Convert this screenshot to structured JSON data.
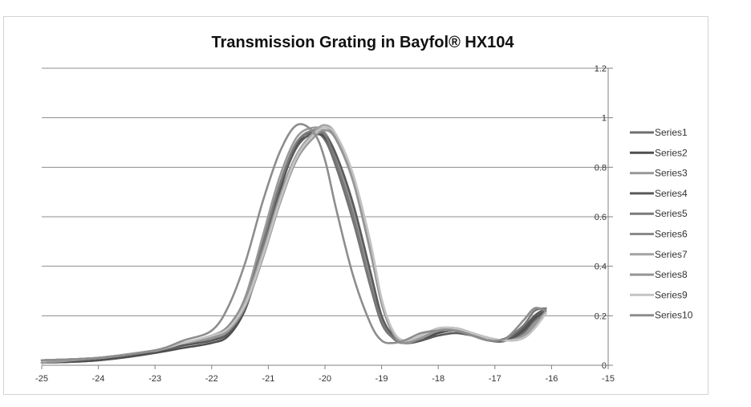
{
  "chart_data": {
    "type": "line",
    "title": "Transmission Grating in Bayfol® HX104",
    "xlabel": "",
    "ylabel": "",
    "xlim": [
      -25,
      -15
    ],
    "ylim": [
      0,
      1.2
    ],
    "x_ticks": [
      "-25",
      "-24",
      "-23",
      "-22",
      "-21",
      "-20",
      "-19",
      "-18",
      "-17",
      "-16",
      "-15"
    ],
    "y_ticks": [
      "0",
      "0.2",
      "0.4",
      "0.6",
      "0.8",
      "1",
      "1.2"
    ],
    "grid": "horizontal",
    "legend_position": "right",
    "series": [
      {
        "name": "Series1",
        "color": "#6f6f6f",
        "x": [
          -25,
          -24,
          -23,
          -22.5,
          -22,
          -21.7,
          -21.4,
          -21.1,
          -20.8,
          -20.5,
          -20.2,
          -20.0,
          -19.8,
          -19.5,
          -19.2,
          -19.0,
          -18.8,
          -18.6,
          -18.3,
          -18.0,
          -17.7,
          -17.4,
          -17.1,
          -16.8,
          -16.5,
          -16.3,
          -16.1
        ],
        "y": [
          0.01,
          0.02,
          0.05,
          0.08,
          0.1,
          0.14,
          0.26,
          0.48,
          0.72,
          0.9,
          0.94,
          0.91,
          0.8,
          0.58,
          0.32,
          0.17,
          0.11,
          0.09,
          0.11,
          0.13,
          0.14,
          0.12,
          0.1,
          0.1,
          0.13,
          0.18,
          0.22
        ]
      },
      {
        "name": "Series2",
        "color": "#4f4f4f",
        "x": [
          -25,
          -24,
          -23,
          -22.5,
          -22,
          -21.7,
          -21.4,
          -21.1,
          -20.8,
          -20.5,
          -20.2,
          -20.0,
          -19.8,
          -19.5,
          -19.2,
          -19.0,
          -18.8,
          -18.6,
          -18.3,
          -18.0,
          -17.7,
          -17.4,
          -17.1,
          -16.8,
          -16.5,
          -16.3,
          -16.1
        ],
        "y": [
          0.01,
          0.02,
          0.05,
          0.07,
          0.09,
          0.12,
          0.23,
          0.45,
          0.7,
          0.89,
          0.93,
          0.92,
          0.83,
          0.62,
          0.35,
          0.19,
          0.12,
          0.09,
          0.1,
          0.13,
          0.14,
          0.12,
          0.1,
          0.1,
          0.14,
          0.19,
          0.22
        ]
      },
      {
        "name": "Series3",
        "color": "#9a9a9a",
        "x": [
          -25,
          -24,
          -23,
          -22.5,
          -22,
          -21.7,
          -21.4,
          -21.1,
          -20.8,
          -20.5,
          -20.2,
          -20.0,
          -19.8,
          -19.5,
          -19.2,
          -19.0,
          -18.8,
          -18.6,
          -18.3,
          -18.0,
          -17.7,
          -17.4,
          -17.1,
          -16.8,
          -16.5,
          -16.3,
          -16.1
        ],
        "y": [
          0.01,
          0.03,
          0.06,
          0.08,
          0.11,
          0.15,
          0.28,
          0.52,
          0.76,
          0.92,
          0.96,
          0.94,
          0.84,
          0.63,
          0.36,
          0.19,
          0.11,
          0.09,
          0.12,
          0.14,
          0.15,
          0.13,
          0.11,
          0.1,
          0.12,
          0.17,
          0.21
        ]
      },
      {
        "name": "Series4",
        "color": "#5a5a5a",
        "x": [
          -25,
          -24,
          -23,
          -22.5,
          -22,
          -21.7,
          -21.4,
          -21.1,
          -20.8,
          -20.5,
          -20.2,
          -20.0,
          -19.8,
          -19.5,
          -19.2,
          -19.0,
          -18.8,
          -18.6,
          -18.3,
          -18.0,
          -17.7,
          -17.4,
          -17.1,
          -16.8,
          -16.5,
          -16.3,
          -16.1
        ],
        "y": [
          0.02,
          0.03,
          0.06,
          0.08,
          0.1,
          0.13,
          0.24,
          0.46,
          0.71,
          0.88,
          0.94,
          0.93,
          0.85,
          0.65,
          0.38,
          0.2,
          0.12,
          0.09,
          0.1,
          0.12,
          0.13,
          0.12,
          0.1,
          0.1,
          0.15,
          0.2,
          0.23
        ]
      },
      {
        "name": "Series5",
        "color": "#7a7a7a",
        "x": [
          -25,
          -24,
          -23,
          -22.5,
          -22,
          -21.7,
          -21.4,
          -21.1,
          -20.8,
          -20.5,
          -20.2,
          -20.0,
          -19.8,
          -19.5,
          -19.2,
          -19.0,
          -18.8,
          -18.6,
          -18.3,
          -18.0,
          -17.7,
          -17.4,
          -17.1,
          -16.8,
          -16.5,
          -16.3,
          -16.1
        ],
        "y": [
          0.02,
          0.03,
          0.06,
          0.09,
          0.11,
          0.14,
          0.26,
          0.49,
          0.73,
          0.9,
          0.95,
          0.93,
          0.82,
          0.6,
          0.33,
          0.18,
          0.11,
          0.09,
          0.11,
          0.14,
          0.14,
          0.12,
          0.1,
          0.11,
          0.16,
          0.22,
          0.23
        ]
      },
      {
        "name": "Series6",
        "color": "#8a8a8a",
        "x": [
          -25,
          -24,
          -23,
          -22.5,
          -22,
          -21.7,
          -21.4,
          -21.1,
          -20.8,
          -20.5,
          -20.2,
          -20.0,
          -19.8,
          -19.5,
          -19.2,
          -19.0,
          -18.8,
          -18.6,
          -18.3,
          -18.0,
          -17.7,
          -17.4,
          -17.1,
          -16.8,
          -16.5,
          -16.3,
          -16.1
        ],
        "y": [
          0.02,
          0.03,
          0.06,
          0.09,
          0.12,
          0.16,
          0.27,
          0.46,
          0.68,
          0.85,
          0.93,
          0.96,
          0.92,
          0.75,
          0.47,
          0.25,
          0.13,
          0.09,
          0.11,
          0.14,
          0.15,
          0.13,
          0.11,
          0.1,
          0.11,
          0.15,
          0.21
        ]
      },
      {
        "name": "Series7",
        "color": "#a3a3a3",
        "x": [
          -25,
          -24,
          -23,
          -22.5,
          -22,
          -21.7,
          -21.4,
          -21.1,
          -20.8,
          -20.5,
          -20.2,
          -20.0,
          -19.8,
          -19.5,
          -19.2,
          -19.0,
          -18.8,
          -18.6,
          -18.3,
          -18.0,
          -17.7,
          -17.4,
          -17.1,
          -16.8,
          -16.5,
          -16.3,
          -16.1
        ],
        "y": [
          0.02,
          0.03,
          0.06,
          0.09,
          0.12,
          0.15,
          0.26,
          0.45,
          0.67,
          0.85,
          0.94,
          0.97,
          0.93,
          0.76,
          0.48,
          0.26,
          0.13,
          0.09,
          0.11,
          0.14,
          0.15,
          0.13,
          0.11,
          0.1,
          0.11,
          0.15,
          0.21
        ]
      },
      {
        "name": "Series8",
        "color": "#959595",
        "x": [
          -25,
          -24,
          -23,
          -22.5,
          -22,
          -21.7,
          -21.4,
          -21.1,
          -20.8,
          -20.5,
          -20.2,
          -20.0,
          -19.8,
          -19.5,
          -19.2,
          -19.0,
          -18.8,
          -18.6,
          -18.3,
          -18.0,
          -17.7,
          -17.4,
          -17.1,
          -16.8,
          -16.5,
          -16.3,
          -16.1
        ],
        "y": [
          0.02,
          0.03,
          0.06,
          0.09,
          0.11,
          0.14,
          0.24,
          0.43,
          0.65,
          0.83,
          0.92,
          0.95,
          0.91,
          0.74,
          0.46,
          0.25,
          0.13,
          0.09,
          0.11,
          0.14,
          0.15,
          0.13,
          0.11,
          0.1,
          0.11,
          0.16,
          0.22
        ]
      },
      {
        "name": "Series9",
        "color": "#c4c4c4",
        "x": [
          -25,
          -24,
          -23,
          -22.5,
          -22,
          -21.7,
          -21.4,
          -21.1,
          -20.8,
          -20.5,
          -20.2,
          -20.0,
          -19.8,
          -19.5,
          -19.2,
          -19.0,
          -18.8,
          -18.6,
          -18.3,
          -18.0,
          -17.7,
          -17.4,
          -17.1,
          -16.8,
          -16.5,
          -16.3,
          -16.1
        ],
        "y": [
          0.02,
          0.03,
          0.06,
          0.09,
          0.12,
          0.15,
          0.25,
          0.44,
          0.66,
          0.84,
          0.93,
          0.96,
          0.93,
          0.77,
          0.5,
          0.27,
          0.14,
          0.1,
          0.12,
          0.15,
          0.15,
          0.13,
          0.11,
          0.1,
          0.11,
          0.15,
          0.21
        ]
      },
      {
        "name": "Series10",
        "color": "#8d8d8d",
        "x": [
          -25,
          -24,
          -23,
          -22.5,
          -22,
          -21.7,
          -21.4,
          -21.1,
          -20.8,
          -20.5,
          -20.2,
          -20.0,
          -19.8,
          -19.5,
          -19.2,
          -19.0,
          -18.8,
          -18.6,
          -18.3,
          -18.0,
          -17.7,
          -17.4,
          -17.1,
          -16.8,
          -16.5,
          -16.3,
          -16.1
        ],
        "y": [
          0.02,
          0.03,
          0.06,
          0.1,
          0.14,
          0.24,
          0.42,
          0.66,
          0.86,
          0.97,
          0.94,
          0.83,
          0.63,
          0.36,
          0.17,
          0.1,
          0.09,
          0.1,
          0.13,
          0.14,
          0.14,
          0.12,
          0.1,
          0.11,
          0.18,
          0.23,
          0.22
        ]
      }
    ]
  }
}
